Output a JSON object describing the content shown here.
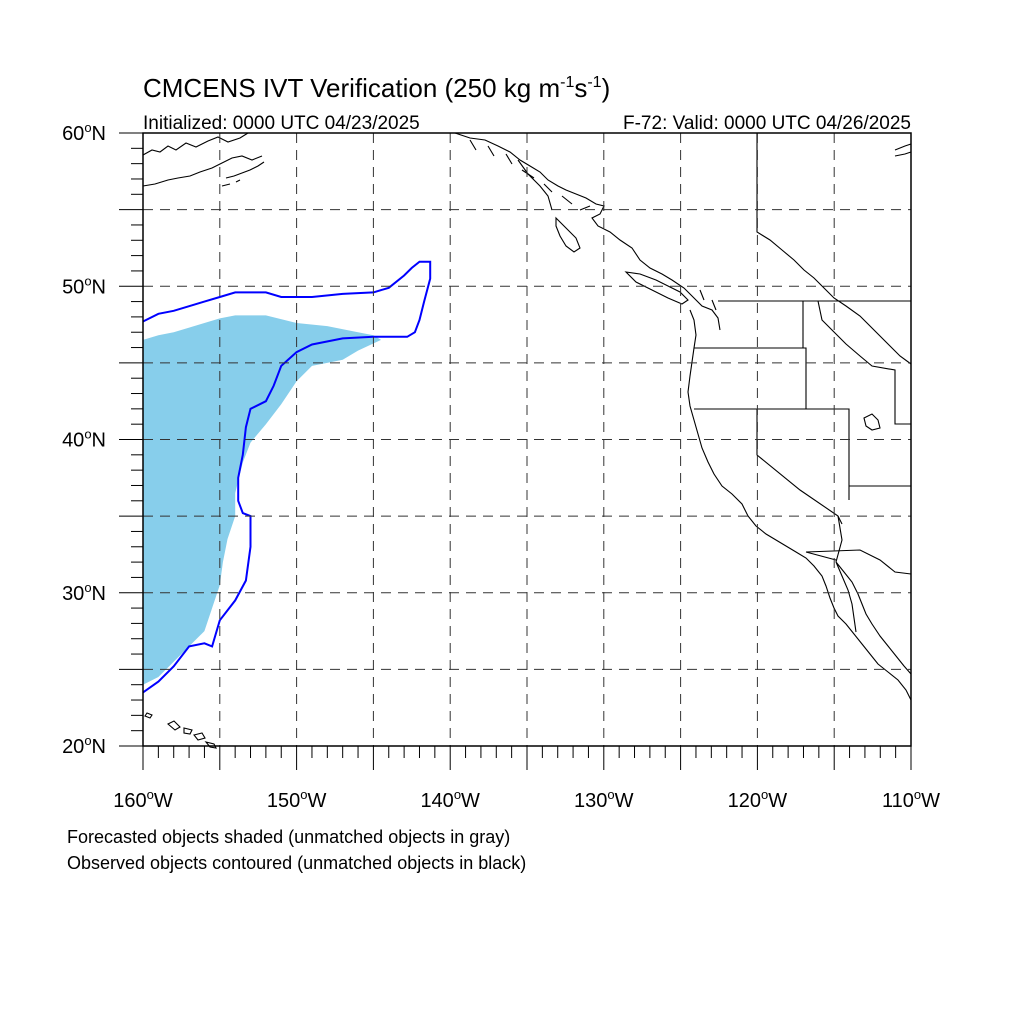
{
  "title": {
    "main": "CMCENS IVT Verification (250 kg m",
    "sup1": "-1",
    "mid": "s",
    "sup2": "-1",
    "end": ")"
  },
  "initialized": "Initialized: 0000 UTC 04/23/2025",
  "valid": "F-72: Valid: 0000 UTC 04/26/2025",
  "map": {
    "lon_range": [
      -160,
      -110
    ],
    "lat_range": [
      20,
      60
    ],
    "lon_labels": [
      "160",
      "150",
      "140",
      "130",
      "120",
      "110"
    ],
    "lon_suffix": "W",
    "lat_labels": [
      "20",
      "30",
      "40",
      "50",
      "60"
    ],
    "lat_suffix": "N",
    "deg_symbol": "o",
    "grid_style": "dashed",
    "grid_lon_step": 5,
    "grid_lat_step": 5
  },
  "objects": {
    "forecast": {
      "color": "#87CEEB",
      "description": "forecast object shaded",
      "outline_lonlat": [
        [
          -160,
          46.5
        ],
        [
          -159,
          46.8
        ],
        [
          -158,
          47.0
        ],
        [
          -157,
          47.3
        ],
        [
          -156,
          47.6
        ],
        [
          -155,
          47.9
        ],
        [
          -154,
          48.1
        ],
        [
          -152,
          48.1
        ],
        [
          -150,
          47.6
        ],
        [
          -148,
          47.4
        ],
        [
          -146,
          47.0
        ],
        [
          -145,
          46.8
        ],
        [
          -144.5,
          46.5
        ],
        [
          -146,
          45.8
        ],
        [
          -147,
          45.2
        ],
        [
          -148,
          45.0
        ],
        [
          -149,
          44.8
        ],
        [
          -150,
          43.8
        ],
        [
          -151,
          42.3
        ],
        [
          -152,
          41.0
        ],
        [
          -153,
          39.8
        ],
        [
          -153.5,
          38.5
        ],
        [
          -154,
          36.5
        ],
        [
          -154,
          35.0
        ],
        [
          -154.5,
          33.5
        ],
        [
          -154.8,
          32.0
        ],
        [
          -155,
          30.5
        ],
        [
          -155.5,
          29.0
        ],
        [
          -156,
          27.5
        ],
        [
          -157,
          26.5
        ],
        [
          -158,
          25.5
        ],
        [
          -159,
          24.5
        ],
        [
          -160,
          24.0
        ]
      ]
    },
    "observed": {
      "color": "#0000FF",
      "description": "observed object contoured",
      "outline_lonlat": [
        [
          -160,
          47.7
        ],
        [
          -159,
          48.2
        ],
        [
          -158,
          48.4
        ],
        [
          -157,
          48.7
        ],
        [
          -156,
          49.0
        ],
        [
          -155,
          49.3
        ],
        [
          -154,
          49.6
        ],
        [
          -152,
          49.6
        ],
        [
          -151,
          49.3
        ],
        [
          -149,
          49.3
        ],
        [
          -147,
          49.5
        ],
        [
          -145,
          49.6
        ],
        [
          -144,
          49.9
        ],
        [
          -143,
          50.7
        ],
        [
          -142.5,
          51.2
        ],
        [
          -142,
          51.6
        ],
        [
          -141.3,
          51.6
        ],
        [
          -141.3,
          50.5
        ],
        [
          -141.7,
          49.0
        ],
        [
          -142.0,
          47.8
        ],
        [
          -142.3,
          47.0
        ],
        [
          -142.8,
          46.7
        ],
        [
          -145,
          46.7
        ],
        [
          -147,
          46.6
        ],
        [
          -149,
          46.2
        ],
        [
          -150,
          45.7
        ],
        [
          -151,
          44.8
        ],
        [
          -151.5,
          43.5
        ],
        [
          -152,
          42.5
        ],
        [
          -153,
          42.0
        ],
        [
          -153.3,
          40.8
        ],
        [
          -153.5,
          39.0
        ],
        [
          -153.8,
          37.5
        ],
        [
          -153.8,
          36.0
        ],
        [
          -153.5,
          35.2
        ],
        [
          -153.0,
          35.0
        ],
        [
          -153.0,
          33.0
        ],
        [
          -153.3,
          30.8
        ],
        [
          -154,
          29.5
        ],
        [
          -155,
          28.2
        ],
        [
          -155.5,
          26.5
        ],
        [
          -156,
          26.7
        ],
        [
          -157,
          26.5
        ],
        [
          -158,
          25.2
        ],
        [
          -159,
          24.2
        ],
        [
          -160,
          23.5
        ]
      ]
    }
  },
  "notes": [
    "Forecasted objects shaded (unmatched objects in gray)",
    "Observed objects contoured (unmatched objects in black)"
  ]
}
